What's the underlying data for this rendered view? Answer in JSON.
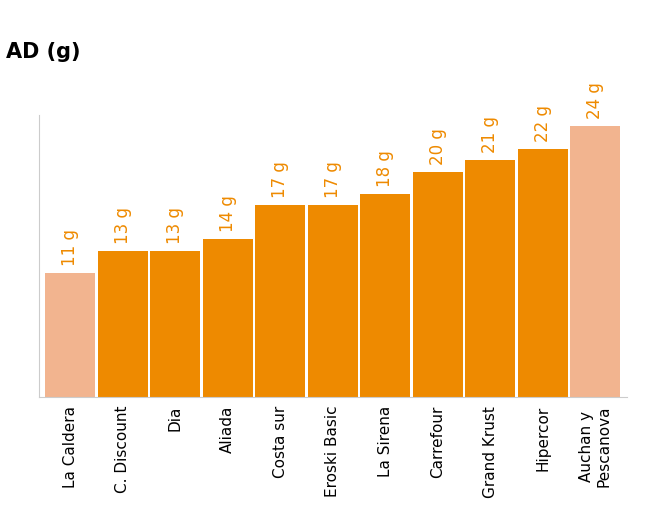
{
  "chart_data": {
    "type": "bar",
    "title": "AD (g)",
    "categories": [
      "La Caldera",
      "C. Discount",
      "Dia",
      "Aliada",
      "Costa sur",
      "Eroski Basic",
      "La Sirena",
      "Carrefour",
      "Grand Krust",
      "Hipercor",
      "Auchan y\nPescanova"
    ],
    "values": [
      11,
      13,
      13,
      14,
      17,
      17,
      18,
      20,
      21,
      22,
      24
    ],
    "value_labels": [
      "11 g",
      "13 g",
      "13 g",
      "14 g",
      "17 g",
      "17 g",
      "18 g",
      "20 g",
      "21 g",
      "22 g",
      "24 g"
    ],
    "colors": [
      "#f2b48f",
      "#ee8a00",
      "#ee8a00",
      "#ee8a00",
      "#ee8a00",
      "#ee8a00",
      "#ee8a00",
      "#ee8a00",
      "#ee8a00",
      "#ee8a00",
      "#f2b48f"
    ],
    "ylim": [
      0,
      25
    ],
    "yticks": [],
    "data_labels": true,
    "tick_labels": "x",
    "grid": false
  }
}
